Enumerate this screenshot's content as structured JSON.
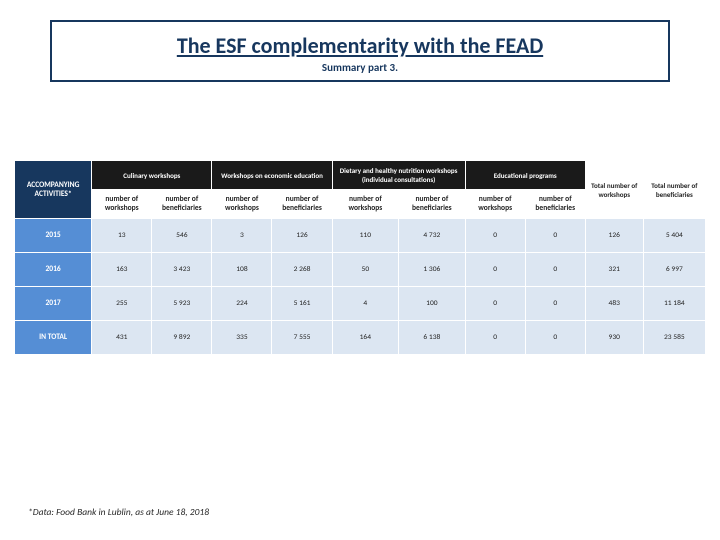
{
  "title": {
    "main": "The ESF complementarity with the FEAD",
    "sub": "Summary part 3."
  },
  "colors": {
    "brand_dark": "#17375e",
    "row_label": "#558ed5",
    "data_bg": "#dce6f2",
    "black": "#1a1a1a",
    "white": "#ffffff",
    "text": "#262626"
  },
  "table": {
    "corner_label": "ACCOMPANYING ACTIVITIES*",
    "groups": [
      {
        "label": "Culinary workshops"
      },
      {
        "label": "Workshops on economic education"
      },
      {
        "label": "Dietary and healthy nutrition workshops (individual consultations)"
      },
      {
        "label": "Educational programs"
      }
    ],
    "totals_header": {
      "col1": "Total number of workshops",
      "col2": "Total number of beneficiaries"
    },
    "subheaders": {
      "w": "number of workshops",
      "b": "number of beneficiaries"
    },
    "rows": [
      {
        "label": "2015",
        "cells": [
          "13",
          "546",
          "3",
          "126",
          "110",
          "4 732",
          "0",
          "0",
          "126",
          "5 404"
        ]
      },
      {
        "label": "2016",
        "cells": [
          "163",
          "3 423",
          "108",
          "2 268",
          "50",
          "1 306",
          "0",
          "0",
          "321",
          "6 997"
        ]
      },
      {
        "label": "2017",
        "cells": [
          "255",
          "5 923",
          "224",
          "5 161",
          "4",
          "100",
          "0",
          "0",
          "483",
          "11 184"
        ]
      },
      {
        "label": "IN TOTAL",
        "cells": [
          "431",
          "9 892",
          "335",
          "7 555",
          "164",
          "6 138",
          "0",
          "0",
          "930",
          "23 585"
        ]
      }
    ]
  },
  "footnote": "*Data: Food Bank in Lublin, as at June 18, 2018"
}
